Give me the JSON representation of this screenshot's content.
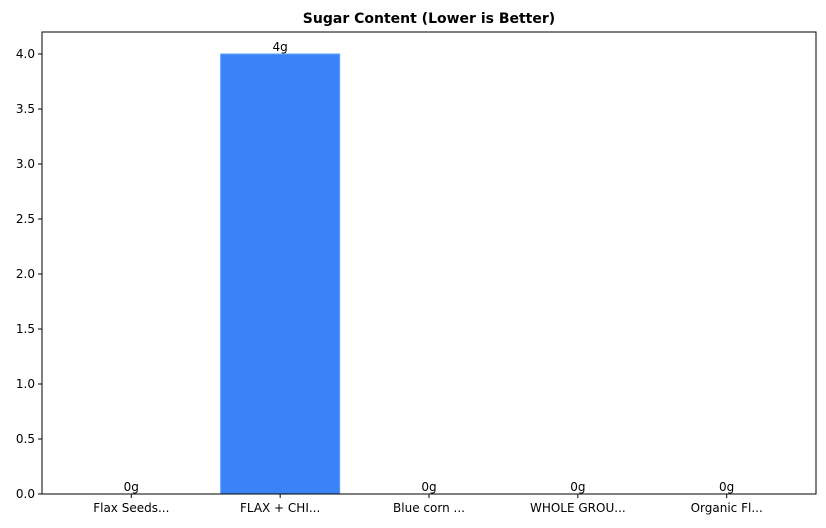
{
  "chart_data": {
    "type": "bar",
    "title": "Sugar Content (Lower is Better)",
    "xlabel": "",
    "ylabel": "",
    "categories": [
      "Flax Seeds...",
      "FLAX + CHI...",
      "Blue corn ...",
      "WHOLE GROU...",
      "Organic Fl..."
    ],
    "values": [
      0,
      4,
      0,
      0,
      0
    ],
    "data_labels": [
      "0g",
      "4g",
      "0g",
      "0g",
      "0g"
    ],
    "ylim": [
      0,
      4.2
    ],
    "yticks": [
      0.0,
      0.5,
      1.0,
      1.5,
      2.0,
      2.5,
      3.0,
      3.5,
      4.0
    ],
    "ytick_labels": [
      "0.0",
      "0.5",
      "1.0",
      "1.5",
      "2.0",
      "2.5",
      "3.0",
      "3.5",
      "4.0"
    ],
    "grid": false,
    "legend": "none",
    "colors": {
      "bar": "#3b82f6",
      "bar_edge": "#60a5fa",
      "axis": "#000000",
      "background": "#ffffff"
    }
  }
}
